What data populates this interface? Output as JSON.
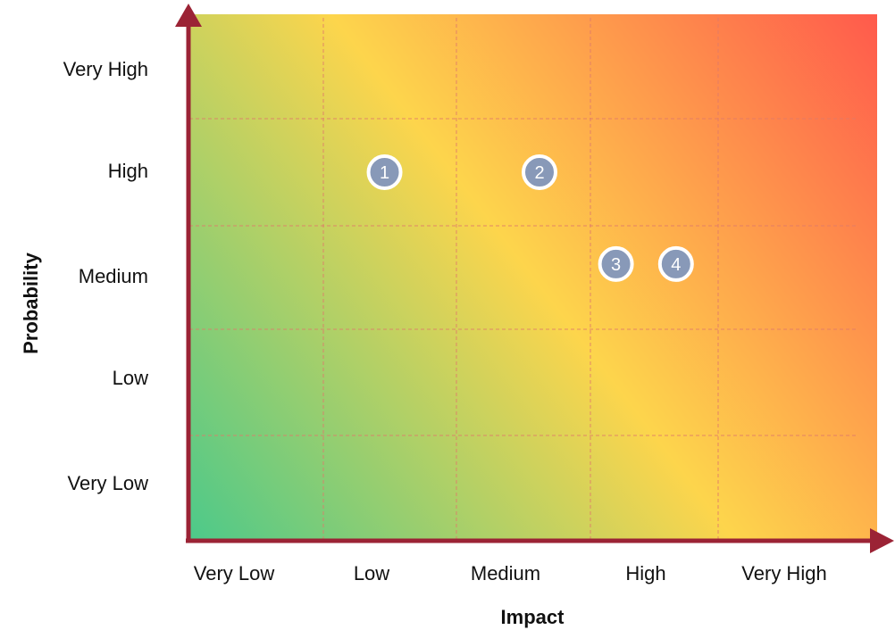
{
  "chart_data": {
    "type": "scatter",
    "xlabel": "Impact",
    "ylabel": "Probability",
    "x_categories": [
      "Very Low",
      "Low",
      "Medium",
      "High",
      "Very High"
    ],
    "y_categories": [
      "Very Low",
      "Low",
      "Medium",
      "High",
      "Very High"
    ],
    "grid": true,
    "points": [
      {
        "label": "1",
        "impact": "Low",
        "probability": "High",
        "x": 1.46,
        "y": 3.5
      },
      {
        "label": "2",
        "impact": "Medium",
        "probability": "High",
        "x": 2.62,
        "y": 3.5
      },
      {
        "label": "3",
        "impact": "High",
        "probability": "Medium",
        "x": 3.2,
        "y": 2.63
      },
      {
        "label": "4",
        "impact": "High",
        "probability": "Medium",
        "x": 3.67,
        "y": 2.63
      }
    ],
    "colors": {
      "low_risk": "#4cc98a",
      "mid_risk": "#fdd54c",
      "high_risk": "#ff5a4c",
      "axis": "#9b2335",
      "marker": "#8899b8",
      "grid": "#e07a6a"
    }
  }
}
